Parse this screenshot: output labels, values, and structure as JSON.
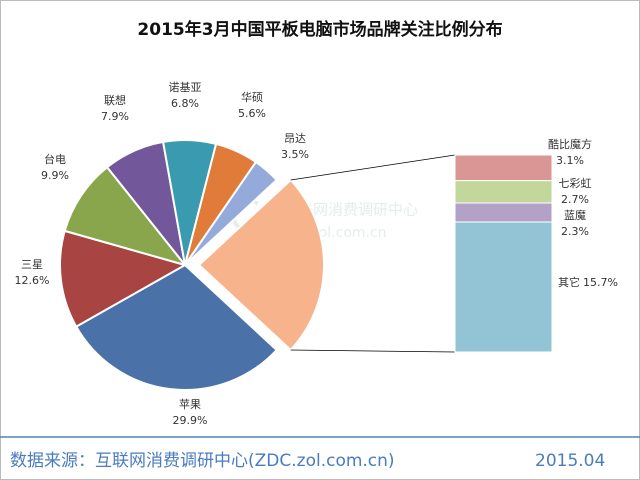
{
  "chart_data": {
    "type": "pie-of-bar",
    "title": "2015年3月中国平板电脑市场品牌关注比例分布",
    "categories": [
      "苹果",
      "三星",
      "台电",
      "联想",
      "诺基亚",
      "华硕",
      "昂达"
    ],
    "values": [
      29.9,
      12.6,
      9.9,
      7.9,
      6.8,
      5.6,
      3.5
    ],
    "value_labels": [
      "29.9%",
      "12.6%",
      "9.9%",
      "7.9%",
      "6.8%",
      "5.6%",
      "3.5%"
    ],
    "colors": [
      "#4a72a8",
      "#a84442",
      "#8aa64c",
      "#72589a",
      "#3a9bb0",
      "#e07b39",
      "#94aadb"
    ],
    "secondary": {
      "categories": [
        "酷比魔方",
        "七彩虹",
        "蓝魔",
        "其它"
      ],
      "values": [
        3.1,
        2.7,
        2.3,
        15.7
      ],
      "value_labels": [
        "3.1%",
        "2.7%",
        "2.3%",
        "15.7%"
      ],
      "colors": [
        "#d99694",
        "#c3d69b",
        "#b3a2c7",
        "#93c4d6"
      ],
      "aggregate_color": "#f7b48c"
    }
  },
  "watermark": {
    "logo": "ZDC",
    "name": "互联网消费调研中心",
    "url": "zdc.zol.com.cn"
  },
  "footer": {
    "source": "数据来源：互联网消费调研中心(ZDC.zol.com.cn)",
    "date": "2015.04"
  }
}
